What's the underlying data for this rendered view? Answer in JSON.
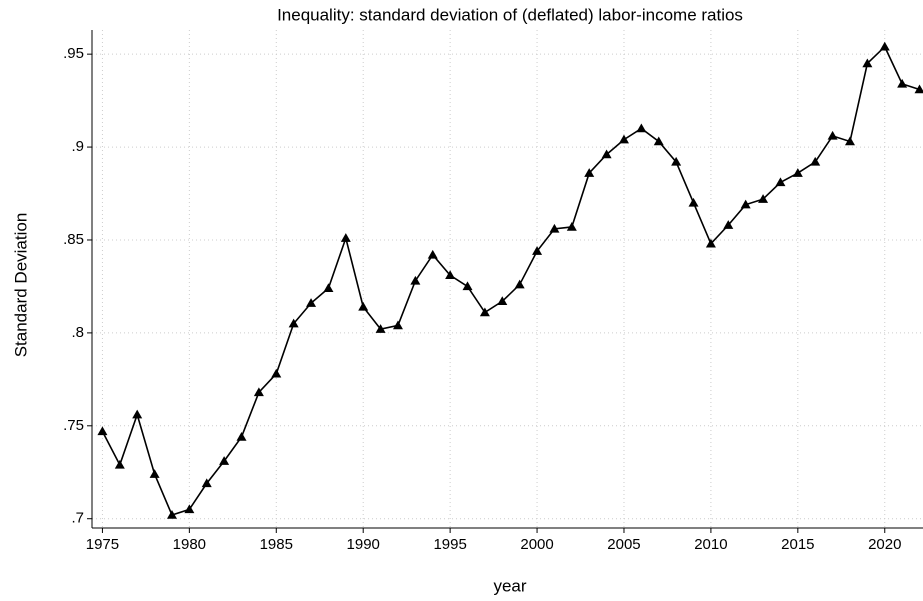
{
  "chart_data": {
    "type": "line",
    "title": "Inequality: standard deviation of (deflated) labor-income ratios",
    "xlabel": "year",
    "ylabel": "Standard Deviation",
    "x": [
      1975,
      1976,
      1977,
      1978,
      1979,
      1980,
      1981,
      1982,
      1983,
      1984,
      1985,
      1986,
      1987,
      1988,
      1989,
      1990,
      1991,
      1992,
      1993,
      1994,
      1995,
      1996,
      1997,
      1998,
      1999,
      2000,
      2001,
      2002,
      2003,
      2004,
      2005,
      2006,
      2007,
      2008,
      2009,
      2010,
      2011,
      2012,
      2013,
      2014,
      2015,
      2016,
      2017,
      2018,
      2019,
      2020,
      2021,
      2022
    ],
    "values": [
      0.747,
      0.729,
      0.756,
      0.724,
      0.702,
      0.705,
      0.719,
      0.731,
      0.744,
      0.768,
      0.778,
      0.805,
      0.816,
      0.824,
      0.851,
      0.814,
      0.802,
      0.804,
      0.828,
      0.842,
      0.831,
      0.825,
      0.811,
      0.817,
      0.826,
      0.844,
      0.856,
      0.857,
      0.886,
      0.896,
      0.904,
      0.91,
      0.903,
      0.892,
      0.87,
      0.848,
      0.858,
      0.869,
      0.872,
      0.881,
      0.886,
      0.892,
      0.906,
      0.903,
      0.945,
      0.954,
      0.934,
      0.931
    ],
    "color": "#000000",
    "marker": "triangle",
    "xlim": [
      1974.4,
      2022.2
    ],
    "xticks": [
      1975,
      1980,
      1985,
      1990,
      1995,
      2000,
      2005,
      2010,
      2015,
      2020
    ],
    "ylim": [
      0.695,
      0.963
    ],
    "yticks": [
      {
        "value": 0.7,
        "label": ".7"
      },
      {
        "value": 0.75,
        "label": ".75"
      },
      {
        "value": 0.8,
        "label": ".8"
      },
      {
        "value": 0.85,
        "label": ".85"
      },
      {
        "value": 0.9,
        "label": ".9"
      },
      {
        "value": 0.95,
        "label": ".95"
      }
    ],
    "grid": true
  }
}
